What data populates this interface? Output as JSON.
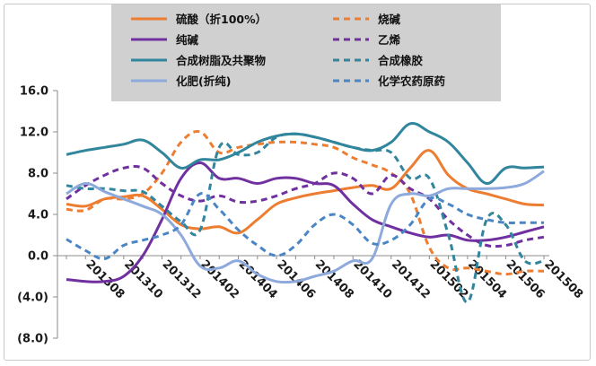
{
  "chart_data": {
    "type": "line",
    "title": "",
    "xlabel": "",
    "ylabel": "",
    "ylim": [
      -8,
      16
    ],
    "yticks": [
      16,
      12,
      8,
      4,
      0,
      -4,
      -8
    ],
    "ytick_labels": [
      "16.0",
      "12.0",
      "8.0",
      "4.0",
      "0.0",
      "(4.0)",
      "(8.0)"
    ],
    "negative_label_color": "#c00000",
    "grid": false,
    "legend_position": "top-center",
    "legend_background": "#d0d0d0",
    "x_labels": [
      "201308",
      "201310",
      "201312",
      "201402",
      "201404",
      "201406",
      "201408",
      "201410",
      "201412",
      "201502",
      "201504",
      "201506",
      "201508"
    ],
    "x": [
      "201307",
      "201308",
      "201309",
      "201310",
      "201311",
      "201312",
      "201401",
      "201402",
      "201403",
      "201404",
      "201405",
      "201406",
      "201407",
      "201408",
      "201409",
      "201410",
      "201411",
      "201412",
      "201501",
      "201502",
      "201503",
      "201504",
      "201505",
      "201506",
      "201507",
      "201508"
    ],
    "series": [
      {
        "name": "硫酸（折100%）",
        "color": "#ed7d31",
        "dash": false,
        "values": [
          5.0,
          4.8,
          5.5,
          5.7,
          5.8,
          4.5,
          3.0,
          2.6,
          2.8,
          2.2,
          3.5,
          5.0,
          5.6,
          6.0,
          6.3,
          6.6,
          6.8,
          6.5,
          8.5,
          10.2,
          7.8,
          6.5,
          6.0,
          5.5,
          5.0,
          4.9
        ]
      },
      {
        "name": "烧碱",
        "color": "#ed7d31",
        "dash": true,
        "values": [
          4.5,
          4.4,
          5.5,
          5.5,
          6.0,
          8.0,
          11.0,
          12.0,
          10.0,
          10.5,
          10.8,
          11.0,
          11.0,
          10.8,
          10.5,
          9.5,
          8.8,
          8.0,
          6.0,
          0.8,
          -1.2,
          -1.2,
          -1.5,
          -1.8,
          -1.5,
          -1.5
        ]
      },
      {
        "name": "纯碱",
        "color": "#7030a0",
        "dash": false,
        "values": [
          -2.3,
          -2.5,
          -2.5,
          -2.0,
          0.0,
          3.5,
          7.5,
          9.0,
          7.5,
          7.5,
          7.0,
          7.5,
          7.5,
          7.0,
          6.8,
          5.0,
          3.5,
          2.8,
          2.2,
          1.8,
          2.0,
          1.5,
          1.5,
          1.8,
          2.3,
          2.8
        ]
      },
      {
        "name": "乙烯",
        "color": "#7030a0",
        "dash": true,
        "values": [
          5.5,
          6.8,
          7.8,
          8.5,
          8.5,
          7.0,
          5.8,
          5.3,
          5.8,
          5.2,
          5.3,
          5.8,
          6.5,
          7.0,
          8.0,
          7.5,
          6.0,
          7.8,
          6.5,
          5.5,
          3.5,
          2.0,
          1.0,
          1.0,
          1.5,
          1.8
        ]
      },
      {
        "name": "合成树脂及共聚物",
        "color": "#31859c",
        "dash": false,
        "values": [
          9.8,
          10.2,
          10.5,
          10.8,
          11.2,
          10.0,
          8.5,
          9.3,
          9.3,
          10.0,
          11.0,
          11.6,
          11.8,
          11.5,
          11.0,
          10.5,
          10.2,
          11.0,
          12.8,
          12.0,
          11.0,
          9.0,
          7.0,
          8.5,
          8.5,
          8.6
        ]
      },
      {
        "name": "合成橡胶",
        "color": "#31859c",
        "dash": true,
        "values": [
          6.8,
          6.5,
          6.5,
          6.3,
          6.2,
          4.8,
          3.3,
          2.5,
          10.5,
          9.8,
          10.0,
          11.5,
          11.8,
          11.5,
          11.0,
          10.5,
          10.2,
          10.0,
          7.5,
          7.5,
          2.0,
          -4.5,
          3.5,
          3.0,
          -0.5,
          -0.5
        ]
      },
      {
        "name": "化肥(折纯)",
        "color": "#8ea9db",
        "dash": false,
        "values": [
          6.0,
          7.0,
          6.2,
          5.5,
          4.8,
          4.0,
          2.0,
          -1.0,
          -1.2,
          -0.5,
          -1.8,
          -2.5,
          -2.5,
          -2.0,
          -1.5,
          -0.5,
          -0.3,
          5.0,
          6.0,
          5.8,
          6.5,
          6.5,
          6.5,
          6.6,
          7.0,
          8.2
        ]
      },
      {
        "name": "化学农药原药",
        "color": "#4a86c5",
        "dash": true,
        "values": [
          1.6,
          0.5,
          -0.3,
          1.0,
          1.5,
          2.0,
          3.0,
          6.0,
          4.5,
          2.5,
          1.0,
          0.0,
          1.0,
          3.0,
          4.0,
          3.0,
          1.2,
          1.5,
          3.0,
          5.5,
          5.0,
          4.0,
          3.5,
          3.2,
          3.2,
          3.2
        ]
      }
    ]
  }
}
